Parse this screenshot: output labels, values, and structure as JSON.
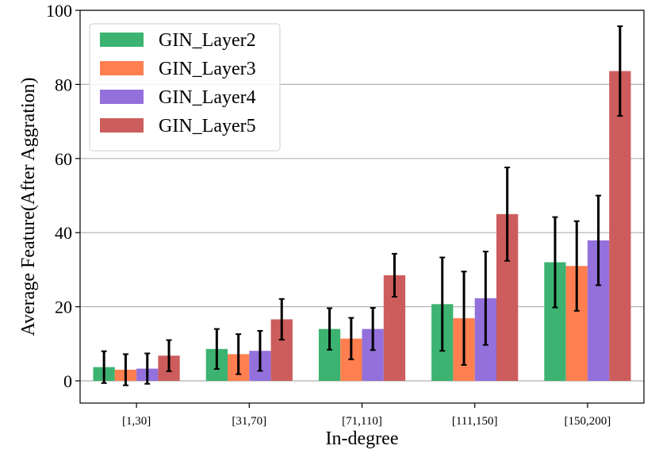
{
  "chart_data": {
    "type": "bar",
    "title": "",
    "xlabel": "In-degree",
    "ylabel": "Average Feature(After Aggration)",
    "ylim": [
      -6,
      100
    ],
    "yticks": [
      0,
      20,
      40,
      60,
      80,
      100
    ],
    "grid": "y",
    "legend_position": "upper-left",
    "categories": [
      "[1,30]",
      "[31,70]",
      "[71,110]",
      "[111,150]",
      "[150,200]"
    ],
    "series": [
      {
        "name": "GIN_Layer2",
        "color": "#3cb371",
        "values": [
          3.7,
          8.6,
          14.0,
          20.7,
          32.0
        ],
        "errors": [
          4.3,
          5.4,
          5.6,
          12.6,
          12.2
        ]
      },
      {
        "name": "GIN_Layer3",
        "color": "#ff7f50",
        "values": [
          3.0,
          7.2,
          11.4,
          16.9,
          31.0
        ],
        "errors": [
          4.2,
          5.4,
          5.6,
          12.6,
          12.1
        ]
      },
      {
        "name": "GIN_Layer4",
        "color": "#9370db",
        "values": [
          3.3,
          8.1,
          14.0,
          22.3,
          37.9
        ],
        "errors": [
          4.1,
          5.4,
          5.7,
          12.6,
          12.1
        ]
      },
      {
        "name": "GIN_Layer5",
        "color": "#cd5c5c",
        "values": [
          6.8,
          16.6,
          28.5,
          45.0,
          83.6
        ],
        "errors": [
          4.2,
          5.5,
          5.8,
          12.6,
          12.1
        ]
      }
    ]
  }
}
